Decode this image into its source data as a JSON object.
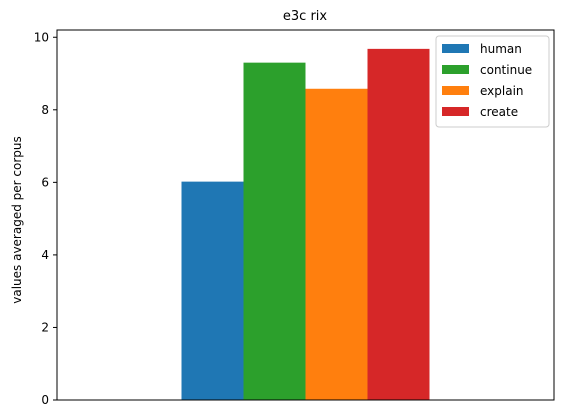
{
  "chart_data": {
    "type": "bar",
    "title": "e3c rix",
    "xlabel": "",
    "ylabel": "values averaged per corpus",
    "ylim": [
      0,
      10.2
    ],
    "yticks": [
      "0",
      "2",
      "4",
      "6",
      "8",
      "10"
    ],
    "series": [
      {
        "name": "human",
        "value": 6.02,
        "color": "#1f77b4"
      },
      {
        "name": "continue",
        "value": 9.3,
        "color": "#2ca02c"
      },
      {
        "name": "explain",
        "value": 8.58,
        "color": "#ff7f0e"
      },
      {
        "name": "create",
        "value": 9.68,
        "color": "#d62728"
      }
    ],
    "legend_position": "top-right",
    "grid": false
  }
}
